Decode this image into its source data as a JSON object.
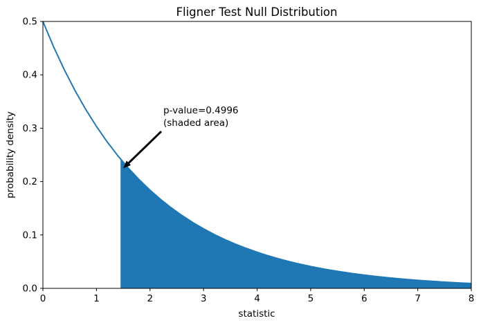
{
  "figure": {
    "background": "#ffffff",
    "text_color": "#000000"
  },
  "chart_data": {
    "type": "line",
    "title": "Fligner Test Null Distribution",
    "xlabel": "statistic",
    "ylabel": "probability density",
    "xlim": [
      0,
      8
    ],
    "ylim": [
      0,
      0.5
    ],
    "grid": false,
    "legend": null,
    "xticks": {
      "values": [
        0,
        1,
        2,
        3,
        4,
        5,
        6,
        7,
        8
      ],
      "labels": [
        "0",
        "1",
        "2",
        "3",
        "4",
        "5",
        "6",
        "7",
        "8"
      ]
    },
    "yticks": {
      "values": [
        0,
        0.1,
        0.2,
        0.3,
        0.4,
        0.5
      ],
      "labels": [
        "0.0",
        "0.1",
        "0.2",
        "0.3",
        "0.4",
        "0.5"
      ]
    },
    "series": [
      {
        "name": "null-distribution-pdf",
        "color": "#1f77b4",
        "linewidth": 2,
        "x": [
          0,
          0.2,
          0.4,
          0.6,
          0.8,
          1.0,
          1.2,
          1.4,
          1.6,
          1.8,
          2.0,
          2.2,
          2.4,
          2.6,
          2.8,
          3.0,
          3.2,
          3.4,
          3.6,
          3.8,
          4.0,
          4.2,
          4.4,
          4.6,
          4.8,
          5.0,
          5.2,
          5.4,
          5.6,
          5.8,
          6.0,
          6.2,
          6.4,
          6.6,
          6.8,
          7.0,
          7.2,
          7.4,
          7.6,
          7.8,
          8.0
        ],
        "y": [
          0.5,
          0.4524,
          0.4094,
          0.3704,
          0.3352,
          0.3033,
          0.2744,
          0.2483,
          0.2247,
          0.2033,
          0.1839,
          0.1664,
          0.1506,
          0.1363,
          0.1233,
          0.1116,
          0.1009,
          0.0913,
          0.0826,
          0.0748,
          0.0677,
          0.0612,
          0.0554,
          0.0501,
          0.0454,
          0.041,
          0.0371,
          0.0336,
          0.0304,
          0.0275,
          0.0249,
          0.0225,
          0.0204,
          0.0184,
          0.0167,
          0.0151,
          0.0137,
          0.0124,
          0.0112,
          0.0101,
          0.0092
        ]
      }
    ],
    "shaded_area": {
      "x_from": 1.45,
      "x_to": 8,
      "color": "#1f77b4"
    },
    "annotation": {
      "line1": "p-value=0.4996",
      "line2": "(shaded area)",
      "arrow_tail_xy": [
        2.21,
        0.294
      ],
      "arrow_tip_xy": [
        1.5,
        0.225
      ],
      "color": "#000000"
    }
  }
}
